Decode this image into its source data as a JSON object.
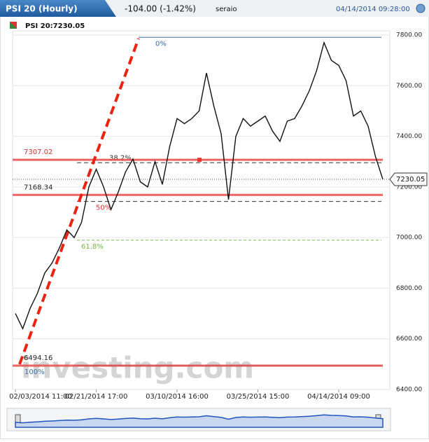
{
  "header": {
    "title": "PSI 20 (Hourly)",
    "change": "-104.00 (-1.42%)",
    "user": "seraio",
    "timestamp": "04/14/2014 09:28:00",
    "legend": "PSI 20:7230.05"
  },
  "chart_data": {
    "type": "line",
    "categories": [
      "02/03/2014 11:00",
      null,
      null,
      null,
      null,
      null,
      null,
      null,
      null,
      null,
      null,
      "02/21/2014 17:00",
      null,
      null,
      null,
      null,
      null,
      null,
      null,
      null,
      null,
      null,
      "03/10/2014 16:00",
      null,
      null,
      null,
      null,
      null,
      null,
      null,
      null,
      null,
      null,
      "03/25/2014 15:00",
      null,
      null,
      null,
      null,
      null,
      null,
      null,
      null,
      null,
      null,
      "04/14/2014 09:00",
      null,
      null,
      null,
      null,
      null,
      null
    ],
    "series": [
      {
        "name": "PSI 20",
        "color": "#111111",
        "values": [
          6700,
          6640,
          6720,
          6780,
          6860,
          6900,
          6960,
          7030,
          7000,
          7060,
          7200,
          7270,
          7200,
          7110,
          7180,
          7260,
          7310,
          7220,
          7200,
          7300,
          7210,
          7360,
          7470,
          7450,
          7470,
          7500,
          7650,
          7520,
          7410,
          7150,
          7400,
          7470,
          7440,
          7460,
          7480,
          7420,
          7380,
          7460,
          7470,
          7520,
          7580,
          7660,
          7770,
          7700,
          7680,
          7620,
          7480,
          7500,
          7440,
          7320,
          7230.05
        ]
      }
    ],
    "ylim": [
      6400,
      7800
    ],
    "yticks": [
      {
        "value": 6400,
        "label": "6400.00"
      },
      {
        "value": 6600,
        "label": "6600.00"
      },
      {
        "value": 6800,
        "label": "6800.00"
      },
      {
        "value": 7000,
        "label": "7000.00"
      },
      {
        "value": 7200,
        "label": "7200.00"
      },
      {
        "value": 7400,
        "label": "7400.00"
      },
      {
        "value": 7600,
        "label": "7600.00"
      },
      {
        "value": 7800,
        "label": "7800.00"
      }
    ],
    "grid": true,
    "levels": [
      7307.02,
      7168.34,
      6494.16
    ],
    "fibonacci": {
      "high": 7791,
      "low": 6494.16,
      "levels": [
        0,
        38.2,
        50,
        61.8,
        100
      ],
      "value_labels": [
        "0%",
        "38.2%",
        "50%",
        "61.8%",
        "100%"
      ]
    },
    "watermark": "investing.com"
  }
}
